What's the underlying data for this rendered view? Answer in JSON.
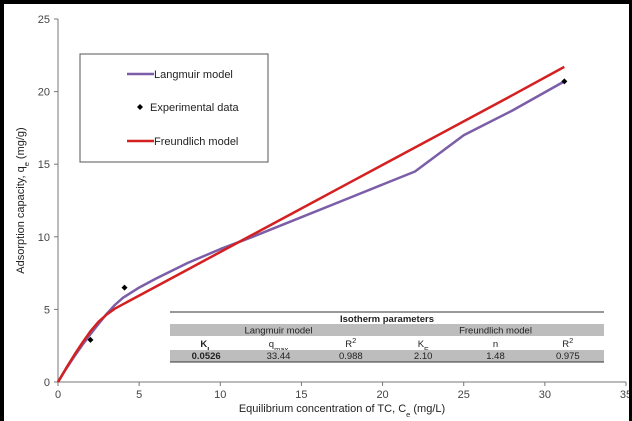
{
  "chart_data": {
    "type": "line",
    "xlabel": "Equilibrium concentration of TC, Ce (mg/L)",
    "xlabel_parts": {
      "main": "Equilibrium concentration of TC, C",
      "sub": "e",
      "tail": " (mg/L)"
    },
    "ylabel_parts": {
      "main": "Adsorption capacity, q",
      "sub": "e",
      "tail": " (mg/g)"
    },
    "xlim": [
      0,
      35
    ],
    "ylim": [
      0,
      25
    ],
    "xticks": [
      0,
      5,
      10,
      15,
      20,
      25,
      30,
      35
    ],
    "yticks": [
      0,
      5,
      10,
      15,
      20,
      25
    ],
    "grid": false,
    "legend_position": "top-left",
    "series": [
      {
        "name": "Langmuir model",
        "kind": "line",
        "color": "#7b5ea7",
        "x": [
          0,
          0.5,
          1,
          1.5,
          2,
          2.5,
          3,
          3.5,
          4,
          5,
          6,
          8,
          10,
          12,
          15,
          18,
          20,
          22,
          25,
          28,
          31.2
        ],
        "y": [
          0,
          0.9,
          1.75,
          2.55,
          3.3,
          4.0,
          4.7,
          5.3,
          5.8,
          6.5,
          7.1,
          8.2,
          9.15,
          10.0,
          11.35,
          12.7,
          13.6,
          14.5,
          17.0,
          18.7,
          20.7
        ]
      },
      {
        "name": "Experimental data",
        "kind": "scatter",
        "color": "#000000",
        "x": [
          2.0,
          4.1,
          31.2
        ],
        "y": [
          2.9,
          6.5,
          20.7
        ]
      },
      {
        "name": "Freundlich model",
        "kind": "line",
        "color": "#d42020",
        "x": [
          0,
          0.5,
          1,
          1.5,
          2,
          2.5,
          3,
          3.5,
          4,
          5,
          6,
          8,
          10,
          12,
          15,
          18,
          20,
          22,
          25,
          28,
          31.2
        ],
        "y": [
          0,
          0.95,
          1.85,
          2.7,
          3.5,
          4.15,
          4.65,
          5.05,
          5.35,
          5.95,
          6.55,
          7.75,
          8.95,
          10.15,
          11.95,
          13.75,
          14.95,
          16.15,
          17.95,
          19.75,
          21.7
        ]
      }
    ],
    "table": {
      "title": "Isotherm parameters",
      "groups": [
        "Langmuir model",
        "Freundlich model"
      ],
      "headers": [
        {
          "main": "K",
          "sub": "L",
          "sup": ""
        },
        {
          "main": "q",
          "sub": "max",
          "sup": ""
        },
        {
          "main": "R",
          "sub": "",
          "sup": "2"
        },
        {
          "main": "K",
          "sub": "F",
          "sup": ""
        },
        {
          "main": "n",
          "sub": "",
          "sup": ""
        },
        {
          "main": "R",
          "sub": "",
          "sup": "2"
        }
      ],
      "values": [
        "0.0526",
        "33.44",
        "0.988",
        "2.10",
        "1.48",
        "0.975"
      ]
    }
  }
}
